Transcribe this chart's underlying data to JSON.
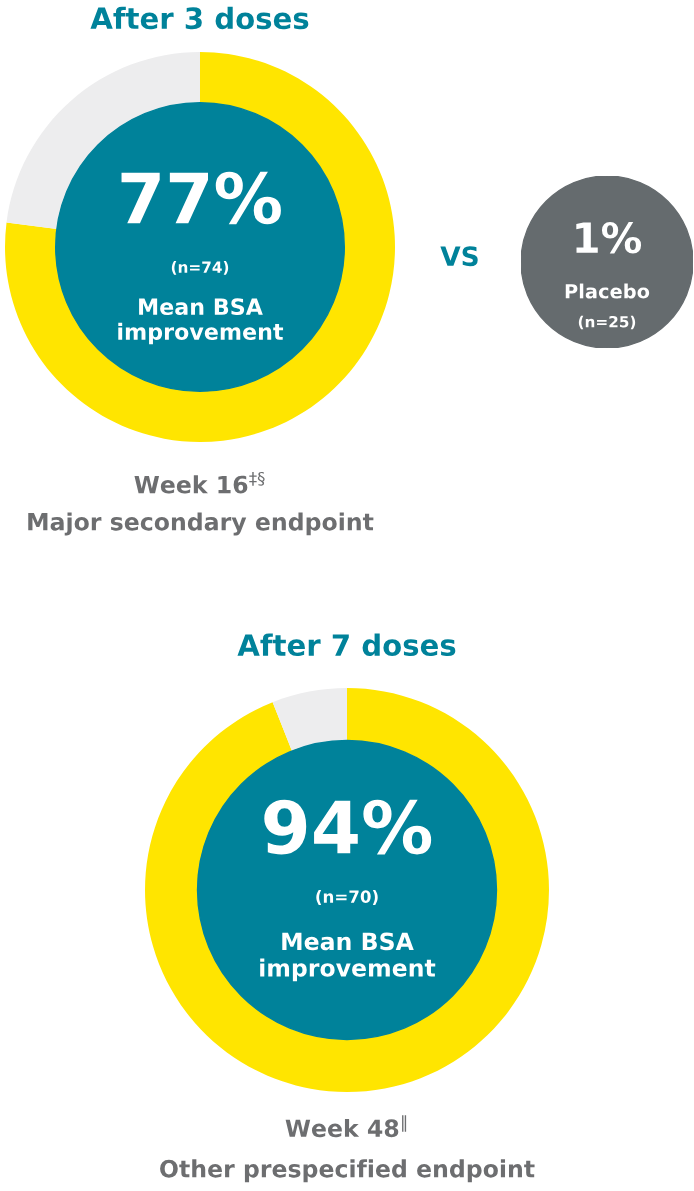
{
  "chart_data": [
    {
      "type": "donut",
      "title": "After 3 doses",
      "categories": [
        null,
        null
      ],
      "values": [
        77,
        23
      ],
      "colors": [
        "#ffe500",
        "#ededee"
      ],
      "annotations": [
        "77%",
        "(n=74)",
        "Mean BSA\nimprovement",
        "Week 16$^{‡§}$",
        "Major secondary endpoint"
      ]
    },
    {
      "type": "other",
      "annotations": [
        "VS",
        "1%",
        "Placebo",
        "(n=25)"
      ]
    },
    {
      "type": "donut",
      "title": "After 7 doses",
      "categories": [
        null,
        null
      ],
      "values": [
        94,
        6
      ],
      "colors": [
        "#ffe500",
        "#ededee"
      ],
      "annotations": [
        "94%",
        "(n=70)",
        "Mean BSA\nimprovement",
        "Week 48$^{‖}$",
        "Other prespecified endpoint"
      ]
    }
  ]
}
